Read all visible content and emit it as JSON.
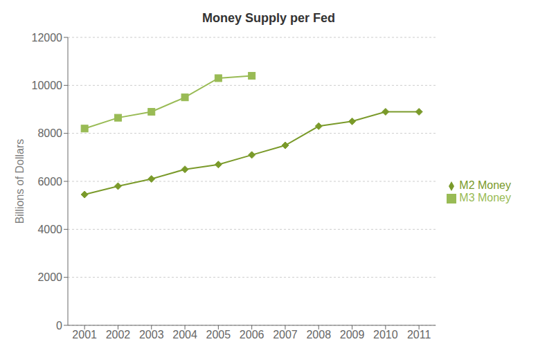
{
  "chart_data": {
    "type": "line",
    "title": "Money Supply per Fed",
    "y_label": "Billions of Dollars",
    "x": [
      2001,
      2002,
      2003,
      2004,
      2005,
      2006,
      2007,
      2008,
      2009,
      2010,
      2011
    ],
    "series": [
      {
        "name": "M2 Money",
        "color": "#7a9a2a",
        "marker": "diamond",
        "values": [
          5450,
          5800,
          6100,
          6500,
          6700,
          7100,
          7500,
          8300,
          8500,
          8900,
          8900
        ]
      },
      {
        "name": "M3 Money",
        "color": "#99bb55",
        "marker": "square",
        "values": [
          8200,
          8650,
          8900,
          9500,
          10300,
          10400,
          null,
          null,
          null,
          null,
          null
        ]
      }
    ],
    "xlim": [
      2000.5,
      2011.5
    ],
    "xticks": [
      2001,
      2002,
      2003,
      2004,
      2005,
      2006,
      2007,
      2008,
      2009,
      2010,
      2011
    ],
    "ylim": [
      0,
      12000
    ],
    "yticks": [
      0,
      2000,
      4000,
      6000,
      8000,
      10000,
      12000
    ],
    "grid": true,
    "legend": "right"
  }
}
